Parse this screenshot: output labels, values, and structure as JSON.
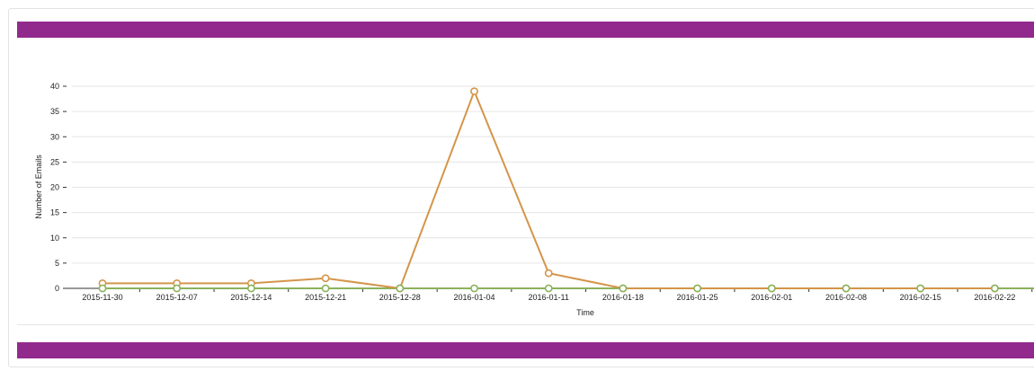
{
  "chart_data": {
    "type": "line",
    "xlabel": "Time",
    "ylabel": "Number of Emails",
    "ylim": [
      0,
      40
    ],
    "yticks": [
      0,
      5,
      10,
      15,
      20,
      25,
      30,
      35,
      40
    ],
    "x": [
      "2015-11-30",
      "2015-12-07",
      "2015-12-14",
      "2015-12-21",
      "2015-12-28",
      "2016-01-04",
      "2016-01-11",
      "2016-01-18",
      "2016-01-25",
      "2016-02-01",
      "2016-02-08",
      "2016-02-15",
      "2016-02-22"
    ],
    "series": [
      {
        "color": "#d4954a",
        "values": [
          1,
          1,
          1,
          2,
          0,
          39,
          3,
          0,
          0,
          0,
          0,
          0,
          0
        ]
      },
      {
        "color": "#8ab35c",
        "values": [
          0,
          0,
          0,
          0,
          0,
          0,
          0,
          0,
          0,
          0,
          0,
          0,
          0
        ]
      }
    ],
    "grid": true,
    "legend": "none"
  },
  "colors": {
    "header_band": "#922a8e",
    "gridline": "#e6e6e6"
  }
}
